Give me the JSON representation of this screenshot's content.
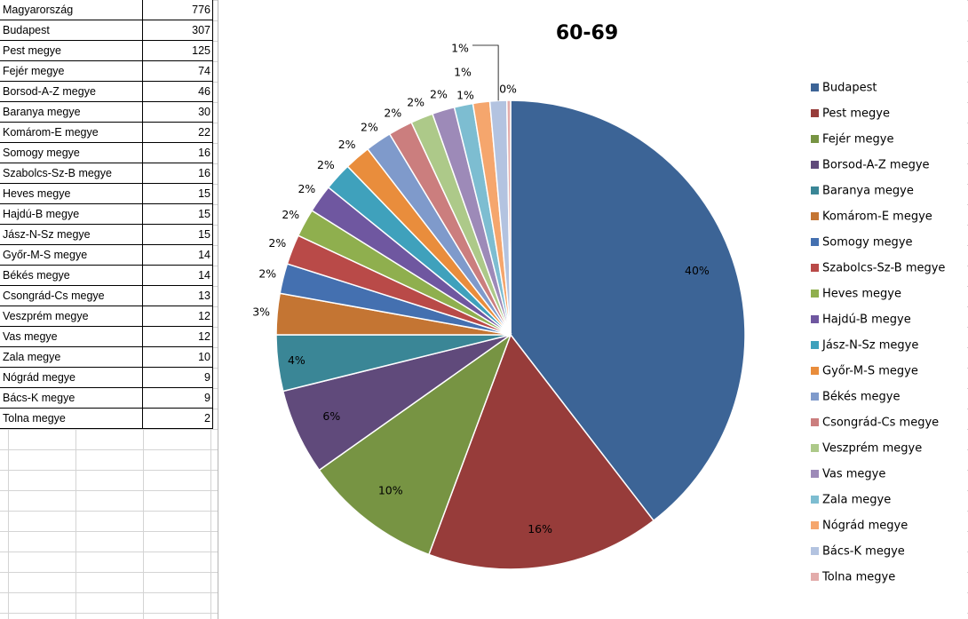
{
  "table": {
    "total": {
      "label": "Magyarország",
      "value": "776"
    },
    "rows": [
      {
        "label": "Budapest",
        "value": "307"
      },
      {
        "label": "Pest megye",
        "value": "125"
      },
      {
        "label": "Fejér megye",
        "value": "74"
      },
      {
        "label": "Borsod-A-Z megye",
        "value": "46"
      },
      {
        "label": "Baranya megye",
        "value": "30"
      },
      {
        "label": "Komárom-E megye",
        "value": "22"
      },
      {
        "label": "Somogy megye",
        "value": "16"
      },
      {
        "label": "Szabolcs-Sz-B megye",
        "value": "16"
      },
      {
        "label": "Heves megye",
        "value": "15"
      },
      {
        "label": "Hajdú-B megye",
        "value": "15"
      },
      {
        "label": "Jász-N-Sz megye",
        "value": "15"
      },
      {
        "label": "Győr-M-S megye",
        "value": "14"
      },
      {
        "label": "Békés megye",
        "value": "14"
      },
      {
        "label": "Csongrád-Cs megye",
        "value": "13"
      },
      {
        "label": "Veszprém megye",
        "value": "12"
      },
      {
        "label": "Vas megye",
        "value": "12"
      },
      {
        "label": "Zala megye",
        "value": "10"
      },
      {
        "label": "Nógrád megye",
        "value": "9"
      },
      {
        "label": "Bács-K megye",
        "value": "9"
      },
      {
        "label": "Tolna megye",
        "value": "2"
      }
    ]
  },
  "chart_data": {
    "type": "pie",
    "title": "60-69",
    "categories": [
      "Budapest",
      "Pest megye",
      "Fejér megye",
      "Borsod-A-Z megye",
      "Baranya megye",
      "Komárom-E megye",
      "Somogy megye",
      "Szabolcs-Sz-B megye",
      "Heves megye",
      "Hajdú-B megye",
      "Jász-N-Sz megye",
      "Győr-M-S megye",
      "Békés megye",
      "Csongrád-Cs megye",
      "Veszprém megye",
      "Vas megye",
      "Zala megye",
      "Nógrád megye",
      "Bács-K megye",
      "Tolna megye"
    ],
    "values": [
      307,
      125,
      74,
      46,
      30,
      22,
      16,
      16,
      15,
      15,
      15,
      14,
      14,
      13,
      12,
      12,
      10,
      9,
      9,
      2
    ],
    "labels": [
      "40%",
      "16%",
      "10%",
      "6%",
      "4%",
      "3%",
      "2%",
      "2%",
      "2%",
      "2%",
      "2%",
      "2%",
      "2%",
      "2%",
      "2%",
      "2%",
      "1%",
      "1%",
      "1%",
      "0%"
    ],
    "colors": [
      "#3C6496",
      "#973C3A",
      "#779443",
      "#604A7B",
      "#3A8696",
      "#C47533",
      "#4470B0",
      "#B94A48",
      "#8FAF4E",
      "#6F57A0",
      "#3FA1BC",
      "#E98D3C",
      "#7F9ACB",
      "#CB7E7E",
      "#ADC989",
      "#9D8AB8",
      "#7DBDD1",
      "#F5A66D",
      "#B3C3E0",
      "#E3ACAB"
    ],
    "legend": "right",
    "start_angle_deg": 0,
    "direction": "clockwise"
  }
}
